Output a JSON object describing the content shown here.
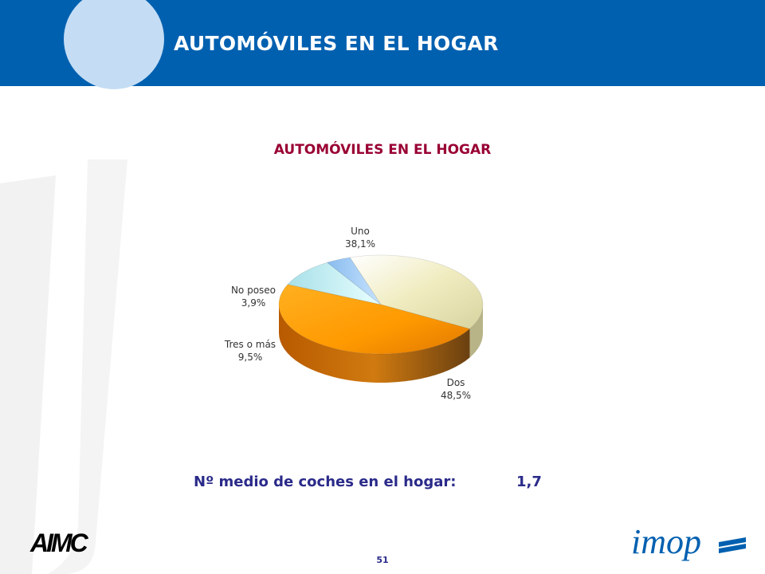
{
  "header": {
    "title": "AUTOMÓVILES EN EL HOGAR"
  },
  "chart_data": {
    "type": "pie",
    "title": "AUTOMÓVILES EN EL HOGAR",
    "slices": [
      {
        "label": "Uno",
        "value": 38.1,
        "value_label": "38,1%",
        "color": "#f0ecc0"
      },
      {
        "label": "Dos",
        "value": 48.5,
        "value_label": "48,5%",
        "color": "#ff9900"
      },
      {
        "label": "Tres o más",
        "value": 9.5,
        "value_label": "9,5%",
        "color": "#c8f4f4"
      },
      {
        "label": "No poseo",
        "value": 3.9,
        "value_label": "3,9%",
        "color": "#99ccff"
      }
    ]
  },
  "summary": {
    "label": "Nº medio de coches en el hogar:",
    "value": "1,7"
  },
  "footer": {
    "page_number": "51",
    "logo_left": "AIMC",
    "logo_right": "imop"
  },
  "colors": {
    "header_bg": "#0060b0",
    "header_circle": "#c4ddf4",
    "chart_title": "#990033",
    "summary_text": "#2a2a8a"
  }
}
